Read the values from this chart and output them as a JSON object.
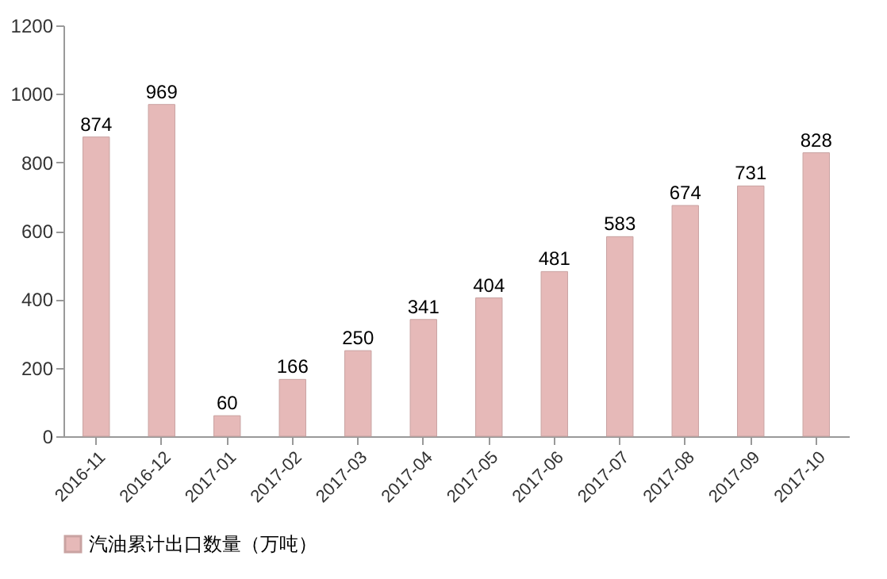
{
  "chart_data": {
    "type": "bar",
    "categories": [
      "2016-11",
      "2016-12",
      "2017-01",
      "2017-02",
      "2017-03",
      "2017-04",
      "2017-05",
      "2017-06",
      "2017-07",
      "2017-08",
      "2017-09",
      "2017-10"
    ],
    "series": [
      {
        "name": "汽油累计出口数量（万吨）",
        "color": "#e6b9b8",
        "values": [
          874,
          969,
          60,
          166,
          250,
          341,
          404,
          481,
          583,
          674,
          731,
          828
        ]
      }
    ],
    "ylim": [
      0,
      1200
    ],
    "yticks": [
      0,
      200,
      400,
      600,
      800,
      1000,
      1200
    ],
    "grid": false,
    "legend": "bottom left",
    "data_labels": true
  }
}
